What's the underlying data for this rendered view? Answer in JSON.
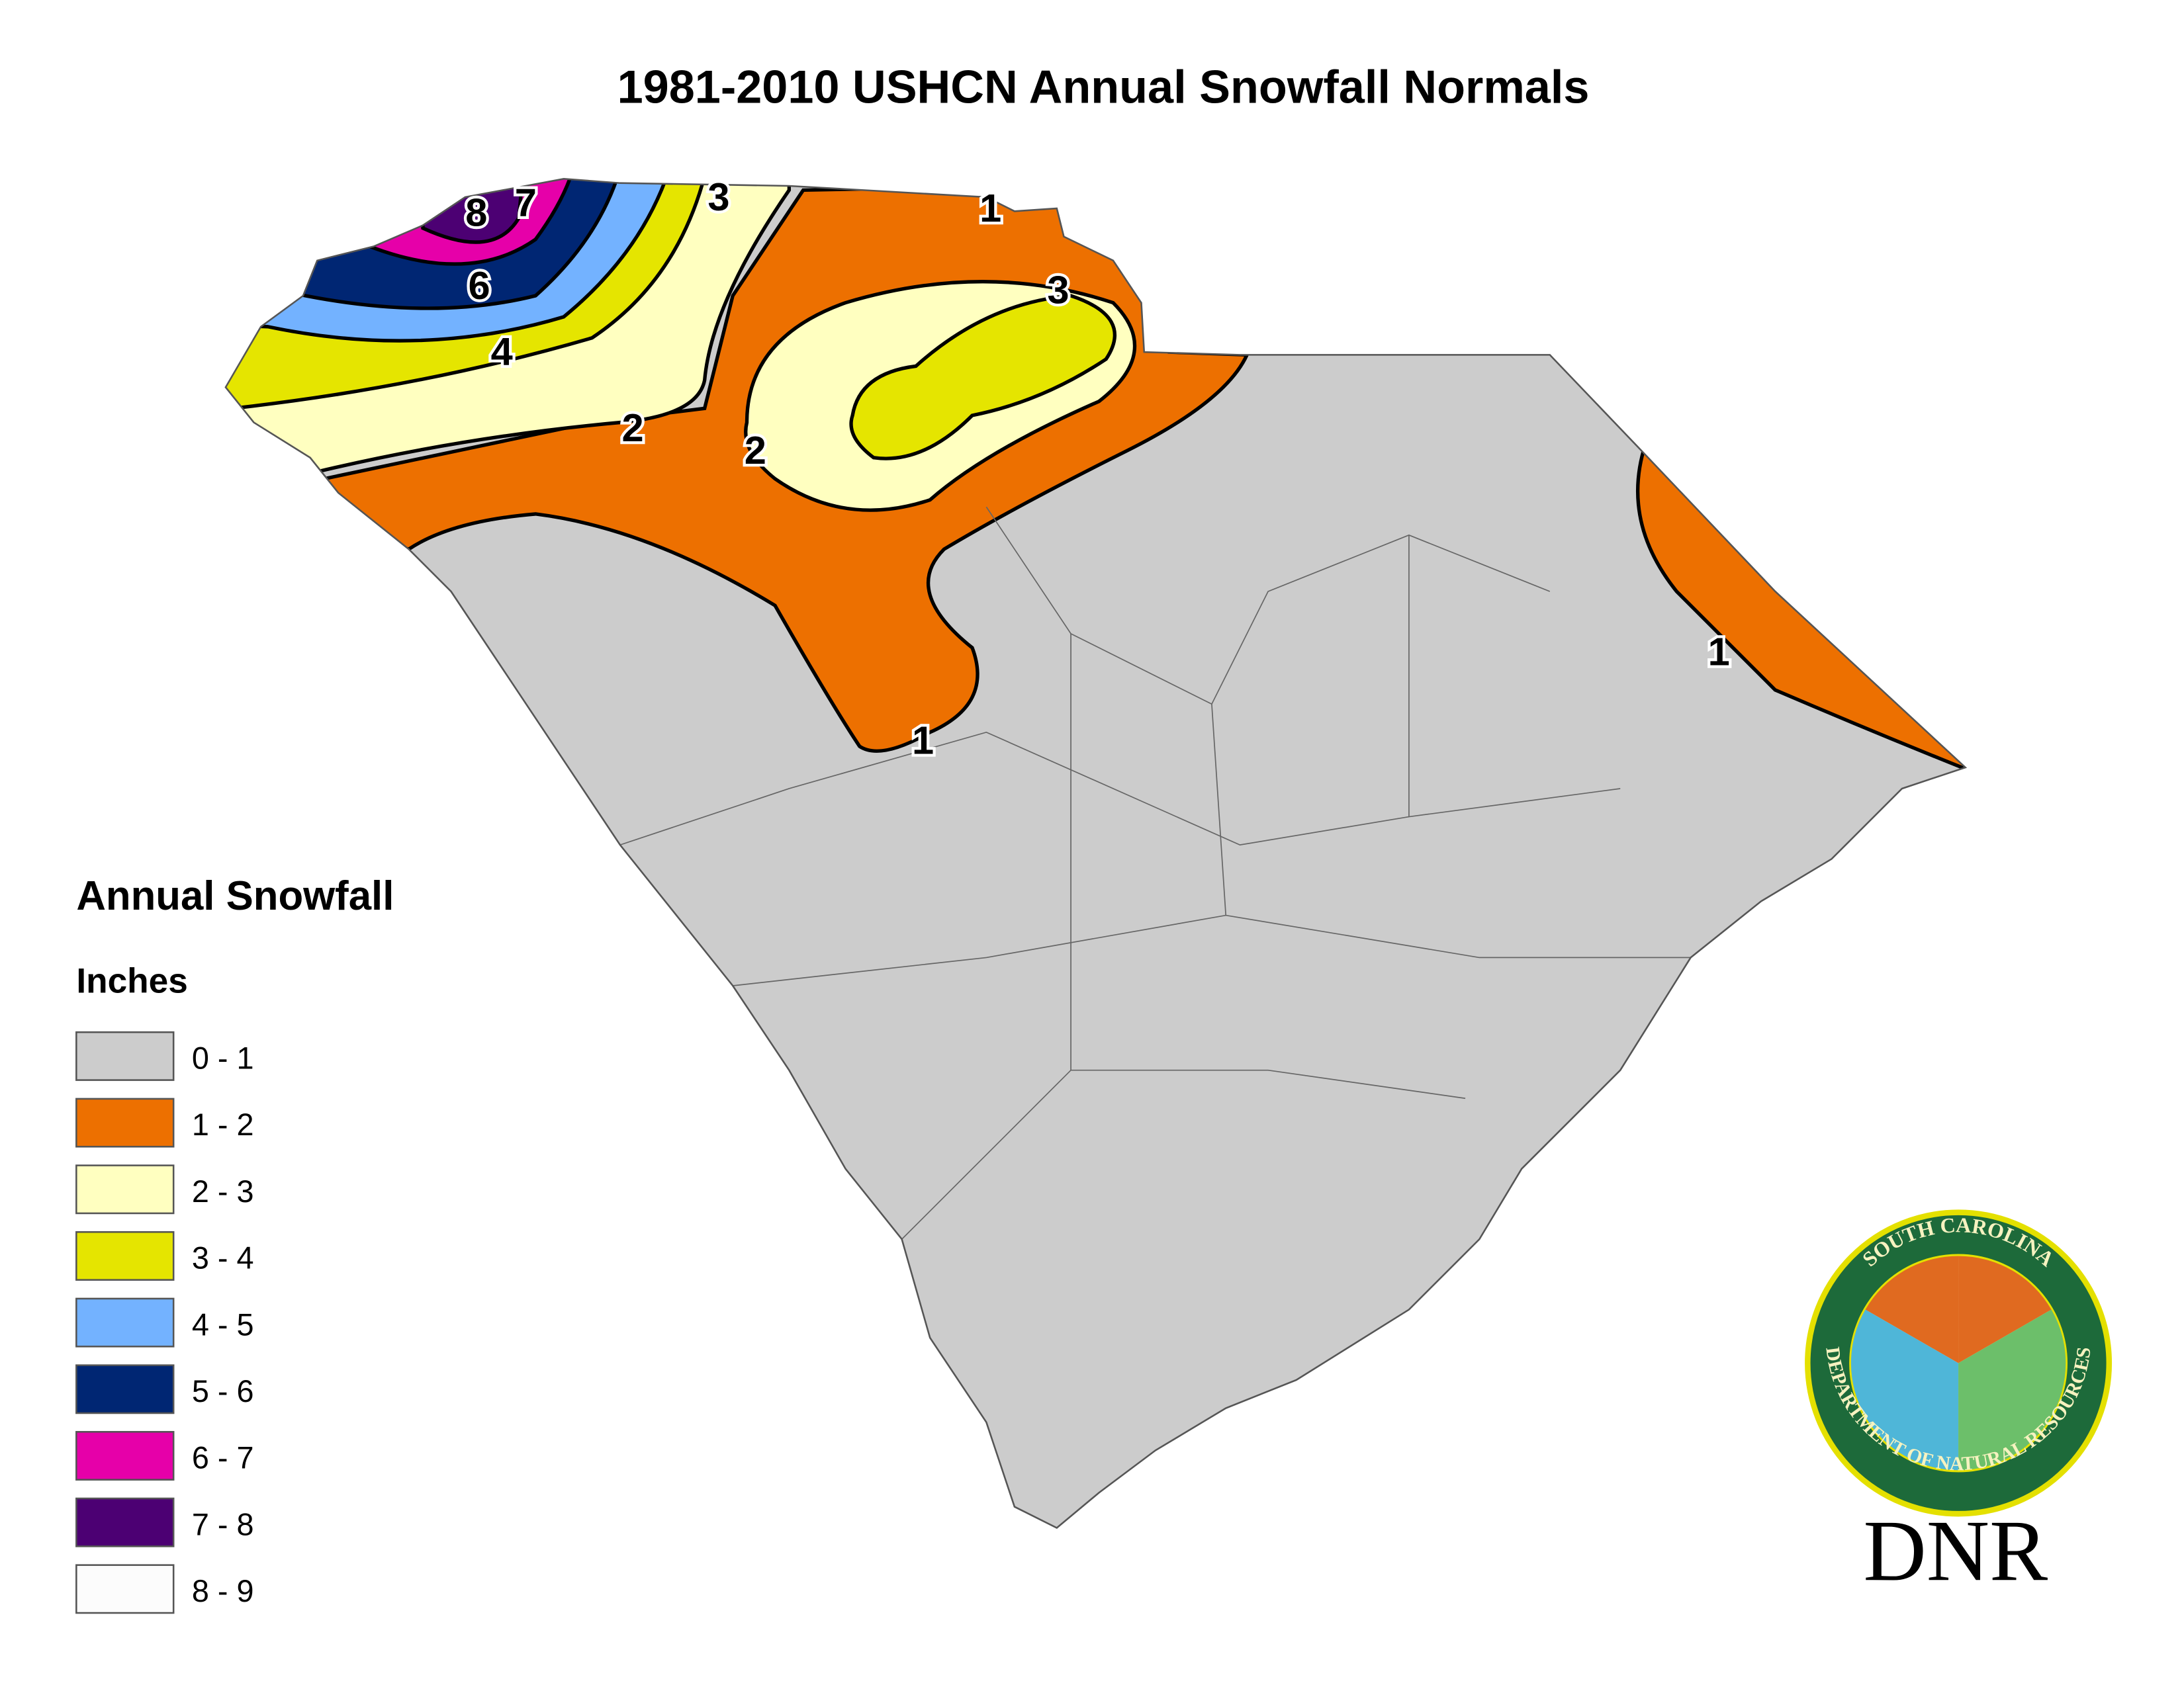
{
  "title": "1981-2010 USHCN Annual Snowfall Normals",
  "legend": {
    "title": "Annual Snowfall",
    "unit": "Inches",
    "items": [
      {
        "label": "0 - 1",
        "color": "#cccccc"
      },
      {
        "label": "1 - 2",
        "color": "#ed7000"
      },
      {
        "label": "2 - 3",
        "color": "#ffffc0"
      },
      {
        "label": "3 - 4",
        "color": "#e5e500"
      },
      {
        "label": "4 - 5",
        "color": "#73b2ff"
      },
      {
        "label": "5 - 6",
        "color": "#002673"
      },
      {
        "label": "6 - 7",
        "color": "#e600a9"
      },
      {
        "label": "7 - 8",
        "color": "#4c0073"
      },
      {
        "label": "8 - 9",
        "color": "#fcfcfc"
      }
    ]
  },
  "contour_labels": [
    "8",
    "7",
    "6",
    "4",
    "3",
    "3",
    "2",
    "2",
    "1",
    "1",
    "1"
  ],
  "logo": {
    "ring_top": "SOUTH CAROLINA",
    "ring_bottom": "DEPARTMENT OF NATURAL RESOURCES",
    "wordmark": "DNR"
  }
}
